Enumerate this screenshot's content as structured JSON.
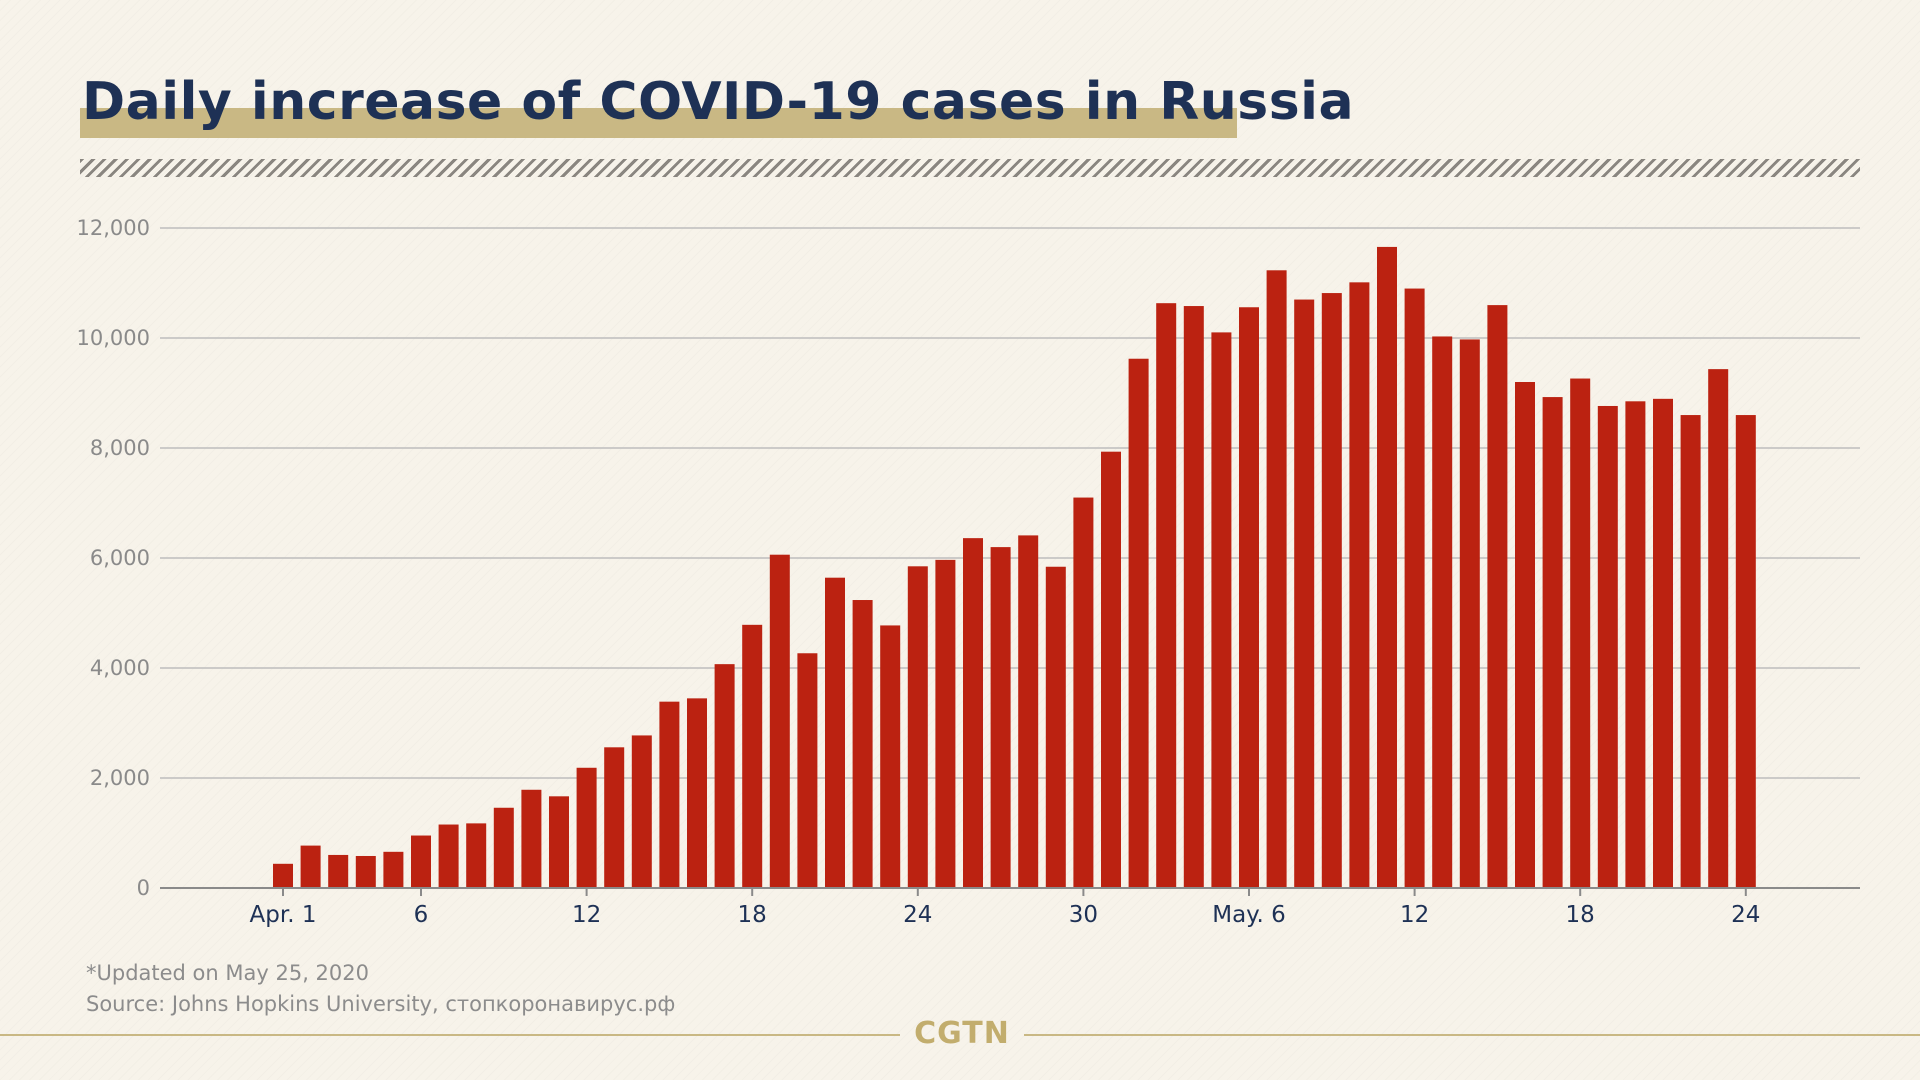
{
  "title": "Daily increase of COVID-19 cases in Russia",
  "footnote": {
    "updated": "*Updated on May 25, 2020",
    "source": "Source: Johns Hopkins University, стопкоронавирус.рф"
  },
  "logo": "CGTN",
  "colors": {
    "bar": "#bb2211",
    "title": "#1e3155",
    "title_highlight": "#c9b884",
    "gridline": "#bdbdbd",
    "background": "#f7f3ea"
  },
  "chart_data": {
    "type": "bar",
    "title": "Daily increase of COVID-19 cases in Russia",
    "xlabel": "",
    "ylabel": "",
    "ylim": [
      0,
      12000
    ],
    "yticks": [
      0,
      2000,
      4000,
      6000,
      8000,
      10000,
      12000
    ],
    "ytick_labels": [
      "0",
      "2,000",
      "4,000",
      "6,000",
      "8,000",
      "10,000",
      "12,000"
    ],
    "grid": true,
    "x_tick_labels": [
      {
        "index": 0,
        "label": "Apr. 1"
      },
      {
        "index": 5,
        "label": "6"
      },
      {
        "index": 11,
        "label": "12"
      },
      {
        "index": 17,
        "label": "18"
      },
      {
        "index": 23,
        "label": "24"
      },
      {
        "index": 29,
        "label": "30"
      },
      {
        "index": 35,
        "label": "May. 6"
      },
      {
        "index": 41,
        "label": "12"
      },
      {
        "index": 47,
        "label": "18"
      },
      {
        "index": 53,
        "label": "24"
      }
    ],
    "categories": [
      "Apr 1",
      "Apr 2",
      "Apr 3",
      "Apr 4",
      "Apr 5",
      "Apr 6",
      "Apr 7",
      "Apr 8",
      "Apr 9",
      "Apr 10",
      "Apr 11",
      "Apr 12",
      "Apr 13",
      "Apr 14",
      "Apr 15",
      "Apr 16",
      "Apr 17",
      "Apr 18",
      "Apr 19",
      "Apr 20",
      "Apr 21",
      "Apr 22",
      "Apr 23",
      "Apr 24",
      "Apr 25",
      "Apr 26",
      "Apr 27",
      "Apr 28",
      "Apr 29",
      "Apr 30",
      "May 1",
      "May 2",
      "May 3",
      "May 4",
      "May 5",
      "May 6",
      "May 7",
      "May 8",
      "May 9",
      "May 10",
      "May 11",
      "May 12",
      "May 13",
      "May 14",
      "May 15",
      "May 16",
      "May 17",
      "May 18",
      "May 19",
      "May 20",
      "May 21",
      "May 22",
      "May 23",
      "May 24"
    ],
    "values": [
      440,
      771,
      601,
      582,
      658,
      954,
      1154,
      1175,
      1459,
      1786,
      1667,
      2186,
      2558,
      2774,
      3388,
      3448,
      4070,
      4785,
      6060,
      4268,
      5642,
      5236,
      4774,
      5849,
      5966,
      6361,
      6198,
      6411,
      5841,
      7099,
      7933,
      9623,
      10633,
      10581,
      10102,
      10559,
      11231,
      10699,
      10817,
      11012,
      11656,
      10899,
      10028,
      9974,
      10598,
      9200,
      8926,
      9263,
      8764,
      8849,
      8894,
      8599,
      9434,
      8599
    ]
  }
}
